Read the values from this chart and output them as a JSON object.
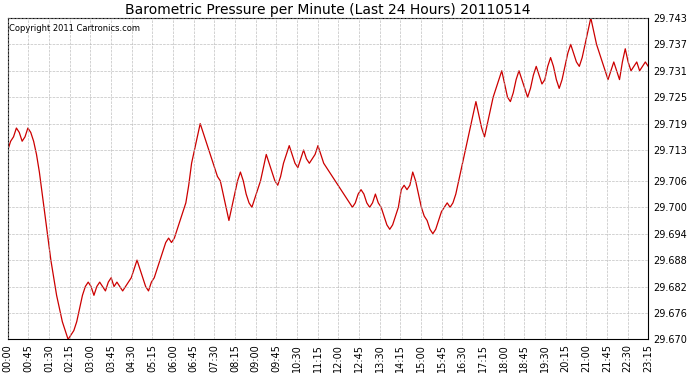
{
  "title": "Barometric Pressure per Minute (Last 24 Hours) 20110514",
  "copyright": "Copyright 2011 Cartronics.com",
  "line_color": "#cc0000",
  "bg_color": "#ffffff",
  "grid_color": "#b0b0b0",
  "title_fontsize": 10,
  "tick_fontsize": 7,
  "ylim": [
    29.67,
    29.743
  ],
  "yticks": [
    29.67,
    29.676,
    29.682,
    29.688,
    29.694,
    29.7,
    29.706,
    29.713,
    29.719,
    29.725,
    29.731,
    29.737,
    29.743
  ],
  "xtick_labels": [
    "00:00",
    "00:45",
    "01:30",
    "02:15",
    "03:00",
    "03:45",
    "04:30",
    "05:15",
    "06:00",
    "06:45",
    "07:30",
    "08:15",
    "09:00",
    "09:45",
    "10:30",
    "11:15",
    "12:00",
    "12:45",
    "13:30",
    "14:15",
    "15:00",
    "15:45",
    "16:30",
    "17:15",
    "18:00",
    "18:45",
    "19:30",
    "20:15",
    "21:00",
    "21:45",
    "22:30",
    "23:15"
  ],
  "pressure_values": [
    29.713,
    29.715,
    29.716,
    29.718,
    29.717,
    29.715,
    29.716,
    29.718,
    29.717,
    29.715,
    29.712,
    29.708,
    29.703,
    29.698,
    29.693,
    29.688,
    29.684,
    29.68,
    29.677,
    29.674,
    29.672,
    29.67,
    29.671,
    29.672,
    29.674,
    29.677,
    29.68,
    29.682,
    29.683,
    29.682,
    29.68,
    29.682,
    29.683,
    29.682,
    29.681,
    29.683,
    29.684,
    29.682,
    29.683,
    29.682,
    29.681,
    29.682,
    29.683,
    29.684,
    29.686,
    29.688,
    29.686,
    29.684,
    29.682,
    29.681,
    29.683,
    29.684,
    29.686,
    29.688,
    29.69,
    29.692,
    29.693,
    29.692,
    29.693,
    29.695,
    29.697,
    29.699,
    29.701,
    29.705,
    29.71,
    29.713,
    29.716,
    29.719,
    29.717,
    29.715,
    29.713,
    29.711,
    29.709,
    29.707,
    29.706,
    29.703,
    29.7,
    29.697,
    29.7,
    29.703,
    29.706,
    29.708,
    29.706,
    29.703,
    29.701,
    29.7,
    29.702,
    29.704,
    29.706,
    29.709,
    29.712,
    29.71,
    29.708,
    29.706,
    29.705,
    29.707,
    29.71,
    29.712,
    29.714,
    29.712,
    29.71,
    29.709,
    29.711,
    29.713,
    29.711,
    29.71,
    29.711,
    29.712,
    29.714,
    29.712,
    29.71,
    29.709,
    29.708,
    29.707,
    29.706,
    29.705,
    29.704,
    29.703,
    29.702,
    29.701,
    29.7,
    29.701,
    29.703,
    29.704,
    29.703,
    29.701,
    29.7,
    29.701,
    29.703,
    29.701,
    29.7,
    29.698,
    29.696,
    29.695,
    29.696,
    29.698,
    29.7,
    29.704,
    29.705,
    29.704,
    29.705,
    29.708,
    29.706,
    29.703,
    29.7,
    29.698,
    29.697,
    29.695,
    29.694,
    29.695,
    29.697,
    29.699,
    29.7,
    29.701,
    29.7,
    29.701,
    29.703,
    29.706,
    29.709,
    29.712,
    29.715,
    29.718,
    29.721,
    29.724,
    29.721,
    29.718,
    29.716,
    29.719,
    29.722,
    29.725,
    29.727,
    29.729,
    29.731,
    29.728,
    29.725,
    29.724,
    29.726,
    29.729,
    29.731,
    29.729,
    29.727,
    29.725,
    29.727,
    29.73,
    29.732,
    29.73,
    29.728,
    29.729,
    29.732,
    29.734,
    29.732,
    29.729,
    29.727,
    29.729,
    29.732,
    29.735,
    29.737,
    29.735,
    29.733,
    29.732,
    29.734,
    29.737,
    29.74,
    29.743,
    29.74,
    29.737,
    29.735,
    29.733,
    29.731,
    29.729,
    29.731,
    29.733,
    29.731,
    29.729,
    29.733,
    29.736,
    29.733,
    29.731,
    29.732,
    29.733,
    29.731,
    29.732,
    29.733,
    29.732
  ]
}
